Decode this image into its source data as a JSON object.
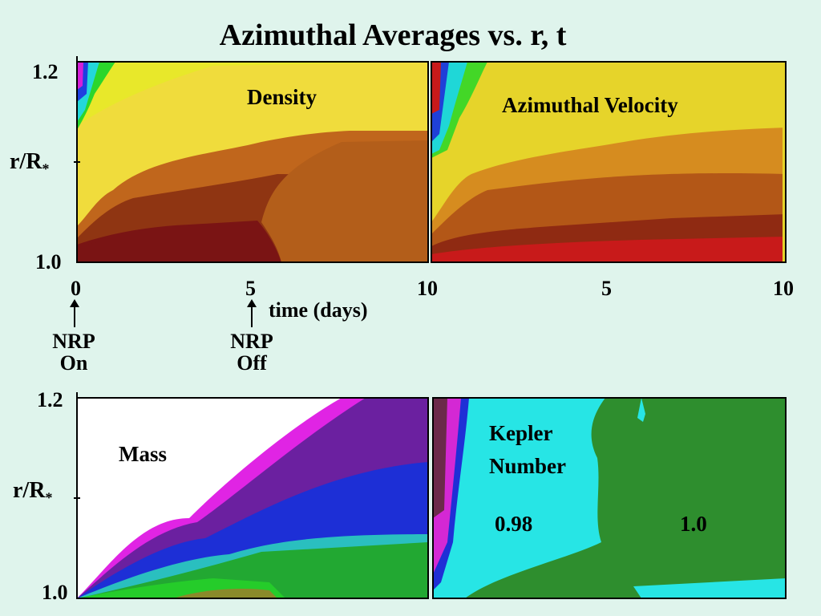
{
  "title": "Azimuthal Averages vs. r, t",
  "chart_data": [
    {
      "type": "heatmap",
      "label": "Density",
      "ylabel": "r/R*",
      "ylim": [
        1.0,
        1.2
      ],
      "y_ticks": [
        "1.2",
        "1.0"
      ],
      "x_ticks": [
        "0",
        "5",
        "10"
      ],
      "xlim": [
        0,
        10
      ],
      "xlabel": "time (days)",
      "annotations": [
        {
          "text": "NRP On",
          "line1": "NRP",
          "line2": "On",
          "time": 0
        },
        {
          "text": "NRP Off",
          "line1": "NRP",
          "line2": "Off",
          "time": 5
        }
      ],
      "colors": [
        "#7a1414",
        "#a03a12",
        "#c0661c",
        "#d79a22",
        "#f0dc3c",
        "#e8e82a",
        "#35d92d",
        "#23d7da",
        "#1f3fe0",
        "#d41fd8"
      ]
    },
    {
      "type": "heatmap",
      "label": "Azimuthal Velocity",
      "x_ticks": [
        "5",
        "10"
      ],
      "colors": [
        "#c81a1a",
        "#8f2a12",
        "#b35717",
        "#d68c1f",
        "#e6d42a",
        "#43d727",
        "#1fd7d7",
        "#1f40d8"
      ]
    },
    {
      "type": "heatmap",
      "label": "Mass",
      "ylabel": "r/R*",
      "ylim": [
        1.0,
        1.2
      ],
      "y_ticks": [
        "1.2",
        "1.0"
      ],
      "colors": [
        "#ffffff",
        "#e024e4",
        "#6b20a0",
        "#1d2fd6",
        "#34b7d0",
        "#2abfbf",
        "#22a832",
        "#25cc2a",
        "#8a8a2a"
      ]
    },
    {
      "type": "heatmap",
      "label": "Kepler Number",
      "label_line1": "Kepler",
      "label_line2": "Number",
      "value_labels": [
        "0.98",
        "1.0"
      ],
      "colors": [
        "#27e5e5",
        "#2e8e2e",
        "#1f2fd6",
        "#d428d4"
      ]
    }
  ]
}
